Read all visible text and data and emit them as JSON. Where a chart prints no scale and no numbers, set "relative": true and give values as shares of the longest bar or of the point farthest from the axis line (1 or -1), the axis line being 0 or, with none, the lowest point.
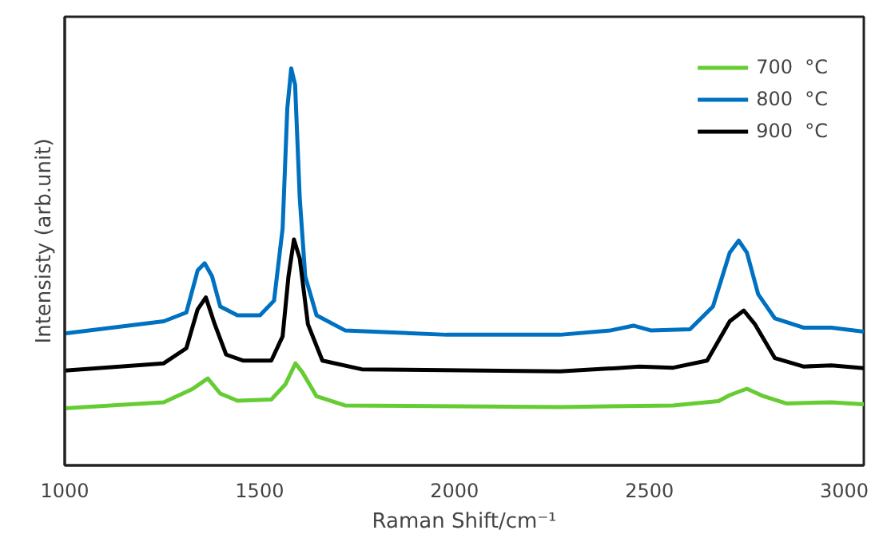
{
  "chart_data": {
    "type": "line",
    "xlabel": "Raman Shift/cm⁻¹",
    "ylabel": "Intensisty (arb.unit)",
    "relative": true,
    "xlim": [
      1000,
      3050
    ],
    "xticks": [
      1000,
      1500,
      2000,
      2500,
      3000
    ],
    "grid": false,
    "legend": "top right",
    "marker": "none",
    "line_style": "solid",
    "series": [
      {
        "name": "700  °C",
        "color": "#66cc33",
        "x": [
          1000,
          1254,
          1327,
          1367,
          1399,
          1443,
          1530,
          1566,
          1592,
          1610,
          1646,
          1719,
          2271,
          2561,
          2677,
          2706,
          2750,
          2793,
          2851,
          2967,
          3050
        ],
        "values": [
          0.144,
          0.159,
          0.192,
          0.219,
          0.181,
          0.163,
          0.166,
          0.204,
          0.257,
          0.234,
          0.174,
          0.151,
          0.147,
          0.151,
          0.162,
          0.177,
          0.193,
          0.174,
          0.156,
          0.159,
          0.154
        ]
      },
      {
        "name": "800  °C",
        "color": "#0070c0",
        "x": [
          1000,
          1254,
          1312,
          1341,
          1359,
          1378,
          1399,
          1443,
          1501,
          1537,
          1559,
          1571,
          1581,
          1591,
          1603,
          1617,
          1646,
          1719,
          1980,
          2271,
          2401,
          2459,
          2503,
          2604,
          2663,
          2706,
          2729,
          2750,
          2779,
          2822,
          2895,
          2967,
          3050
        ],
        "values": [
          0.332,
          0.363,
          0.385,
          0.491,
          0.509,
          0.476,
          0.4,
          0.378,
          0.378,
          0.415,
          0.597,
          0.899,
          1.0,
          0.959,
          0.672,
          0.476,
          0.378,
          0.34,
          0.329,
          0.329,
          0.34,
          0.352,
          0.34,
          0.343,
          0.4,
          0.536,
          0.566,
          0.536,
          0.431,
          0.37,
          0.347,
          0.347,
          0.337
        ]
      },
      {
        "name": "900  °C",
        "color": "#000000",
        "x": [
          1000,
          1254,
          1312,
          1341,
          1362,
          1385,
          1414,
          1457,
          1530,
          1559,
          1574,
          1588,
          1603,
          1624,
          1661,
          1762,
          2271,
          2416,
          2474,
          2561,
          2648,
          2706,
          2742,
          2771,
          2822,
          2895,
          2967,
          3050
        ],
        "values": [
          0.239,
          0.257,
          0.295,
          0.393,
          0.423,
          0.355,
          0.279,
          0.264,
          0.264,
          0.325,
          0.476,
          0.569,
          0.521,
          0.355,
          0.264,
          0.242,
          0.237,
          0.245,
          0.249,
          0.246,
          0.264,
          0.363,
          0.39,
          0.355,
          0.27,
          0.249,
          0.252,
          0.245
        ]
      }
    ]
  }
}
